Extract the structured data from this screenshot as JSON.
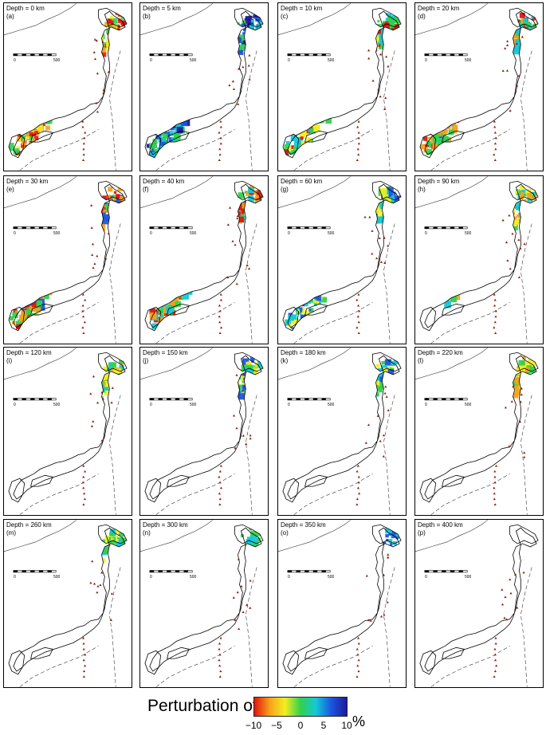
{
  "panels": [
    {
      "id": "a",
      "title": "Depth = 0 km",
      "tag": "(a)",
      "fill": "mixed-red"
    },
    {
      "id": "b",
      "title": "Depth = 5 km",
      "tag": "(b)",
      "fill": "blue"
    },
    {
      "id": "c",
      "title": "Depth = 10 km",
      "tag": "(c)",
      "fill": "green"
    },
    {
      "id": "d",
      "title": "Depth = 20 km",
      "tag": "(d)",
      "fill": "green-orange"
    },
    {
      "id": "e",
      "title": "Depth = 30 km",
      "tag": "(e)",
      "fill": "orange-blue"
    },
    {
      "id": "f",
      "title": "Depth = 40 km",
      "tag": "(f)",
      "fill": "orange-green"
    },
    {
      "id": "g",
      "title": "Depth = 60 km",
      "tag": "(g)",
      "fill": "green-yellow"
    },
    {
      "id": "h",
      "title": "Depth = 90 km",
      "tag": "(h)",
      "fill": "yellow-green"
    },
    {
      "id": "i",
      "title": "Depth = 120 km",
      "tag": "(i)",
      "fill": "yellow-partial"
    },
    {
      "id": "j",
      "title": "Depth = 150 km",
      "tag": "(j)",
      "fill": "green-partial"
    },
    {
      "id": "k",
      "title": "Depth = 180 km",
      "tag": "(k)",
      "fill": "blue-partial"
    },
    {
      "id": "l",
      "title": "Depth = 220 km",
      "tag": "(l)",
      "fill": "small-yellow"
    },
    {
      "id": "m",
      "title": "Depth = 260 km",
      "tag": "(m)",
      "fill": "small-green"
    },
    {
      "id": "n",
      "title": "Depth = 300 km",
      "tag": "(n)",
      "fill": "tiny"
    },
    {
      "id": "o",
      "title": "Depth = 350 km",
      "tag": "(o)",
      "fill": "tiny-blue"
    },
    {
      "id": "p",
      "title": "Depth = 400 km",
      "tag": "(p)",
      "fill": "none"
    }
  ],
  "scale_bar": {
    "left_label": "0",
    "right_label": "500"
  },
  "colorbar": {
    "title": "Perturbation of V",
    "unit": "%",
    "ticks": [
      "−10",
      "−5",
      "0",
      "5",
      "10"
    ],
    "colors": [
      "#e4140c",
      "#f7a11a",
      "#f1ee22",
      "#31d14e",
      "#13c8d8",
      "#1c55e0",
      "#1c1a9c"
    ]
  }
}
